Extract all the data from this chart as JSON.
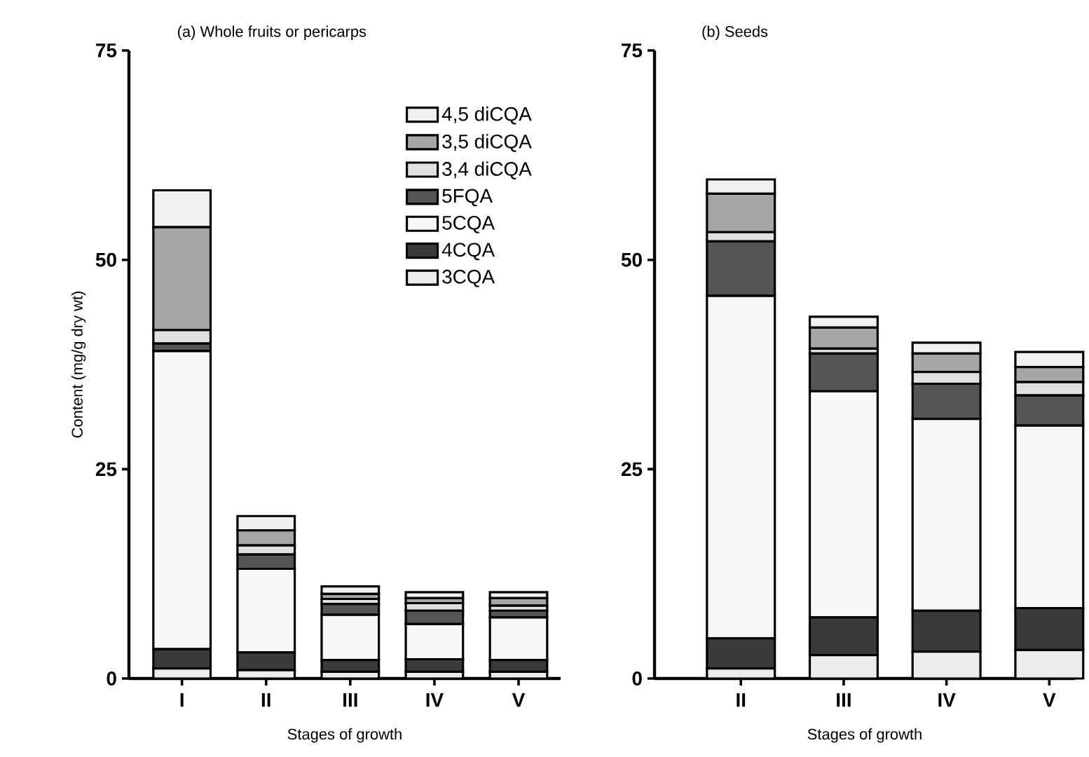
{
  "chart_data": [
    {
      "type": "bar",
      "stacked": true,
      "title": "(a) Whole fruits or pericarps",
      "xlabel": "Stages of growth",
      "ylabel": "Content (mg/g dry wt)",
      "categories": [
        "I",
        "II",
        "III",
        "IV",
        "V"
      ],
      "ylim": [
        0,
        75
      ],
      "yticks": [
        0,
        25,
        50,
        75
      ],
      "legend": "top right",
      "series": [
        {
          "name": "3CQA",
          "color": "#ececec",
          "values": [
            1.2,
            1.0,
            0.8,
            0.8,
            0.8
          ]
        },
        {
          "name": "4CQA",
          "color": "#3a3a3a",
          "values": [
            2.3,
            2.1,
            1.4,
            1.5,
            1.4
          ]
        },
        {
          "name": "5CQA",
          "color": "#f6f6f6",
          "values": [
            35.6,
            10.0,
            5.4,
            4.2,
            5.1
          ]
        },
        {
          "name": "5FQA",
          "color": "#555555",
          "values": [
            0.9,
            1.7,
            1.3,
            1.6,
            0.8
          ]
        },
        {
          "name": "3,4 diCQA",
          "color": "#e0e0e0",
          "values": [
            1.6,
            1.1,
            0.6,
            0.9,
            0.6
          ]
        },
        {
          "name": "3,5 diCQA",
          "color": "#a6a6a6",
          "values": [
            12.3,
            1.8,
            0.6,
            0.6,
            0.9
          ]
        },
        {
          "name": "4,5 diCQA",
          "color": "#f0f0f0",
          "values": [
            4.4,
            1.7,
            0.9,
            0.7,
            0.7
          ]
        }
      ]
    },
    {
      "type": "bar",
      "stacked": true,
      "title": "(b) Seeds",
      "xlabel": "Stages of growth",
      "categories": [
        "II",
        "III",
        "IV",
        "V"
      ],
      "ylim": [
        0,
        75
      ],
      "yticks": [
        0,
        25,
        50,
        75
      ],
      "series": [
        {
          "color": "#ececec",
          "values": [
            1.2,
            2.8,
            3.2,
            3.4
          ]
        },
        {
          "color": "#3a3a3a",
          "values": [
            3.6,
            4.5,
            4.9,
            5.0
          ]
        },
        {
          "color": "#f6f6f6",
          "values": [
            40.9,
            27.0,
            22.9,
            21.8
          ]
        },
        {
          "color": "#555555",
          "values": [
            6.5,
            4.5,
            4.2,
            3.6
          ]
        },
        {
          "color": "#e0e0e0",
          "values": [
            1.1,
            0.6,
            1.4,
            1.6
          ]
        },
        {
          "color": "#a6a6a6",
          "values": [
            4.6,
            2.5,
            2.2,
            1.8
          ]
        },
        {
          "color": "#f0f0f0",
          "values": [
            1.7,
            1.3,
            1.3,
            1.8
          ]
        }
      ]
    }
  ]
}
